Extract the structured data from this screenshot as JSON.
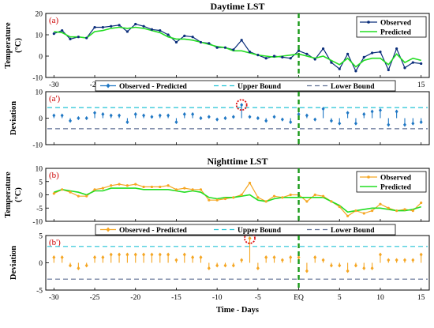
{
  "chart_data": [
    {
      "type": "line",
      "panel_label": "(a)",
      "title": "Daytime LST",
      "ylabel": [
        "Temperature",
        "(°C)"
      ],
      "ylim": [
        -10,
        20
      ],
      "yticks": [
        -10,
        0,
        10,
        20
      ],
      "xlim": [
        -31,
        16
      ],
      "xticks": [
        -30,
        -25,
        -20,
        -15,
        -10,
        -5,
        0,
        5,
        10,
        15
      ],
      "xtick_labels": [
        "-30",
        "-25",
        "-20",
        "-15",
        "-10",
        "-5",
        "EQ",
        "5",
        "10",
        "15"
      ],
      "event_day": 0,
      "legend": {
        "position": "top-right",
        "entries": [
          "Observed",
          "Predicted"
        ]
      },
      "x": [
        -30,
        -29,
        -28,
        -27,
        -26,
        -25,
        -24,
        -23,
        -22,
        -21,
        -20,
        -19,
        -18,
        -17,
        -16,
        -15,
        -14,
        -13,
        -12,
        -11,
        -10,
        -9,
        -8,
        -7,
        -6,
        -5,
        -4,
        -3,
        -2,
        -1,
        0,
        1,
        2,
        3,
        4,
        5,
        6,
        7,
        8,
        9,
        10,
        11,
        12,
        13,
        14,
        15
      ],
      "series": [
        {
          "name": "Observed",
          "color": "#0a2d7a",
          "values": [
            10.5,
            12,
            8,
            9,
            8.5,
            13.5,
            13.5,
            14,
            14.5,
            11.5,
            15,
            14,
            12.5,
            12,
            10,
            6.5,
            9.5,
            9,
            6.5,
            6,
            4,
            4,
            3,
            7.5,
            2,
            0.5,
            -1,
            0,
            -0.5,
            -1,
            2.5,
            1,
            -1.5,
            3.5,
            -3,
            -6,
            1,
            -7,
            -0.5,
            1.5,
            2,
            -6.5,
            3.5,
            -5.5,
            -3,
            -3.5
          ]
        },
        {
          "name": "Predicted",
          "color": "#22dd22",
          "values": [
            11.5,
            11,
            9,
            9,
            8.5,
            11.5,
            12,
            13,
            13.5,
            13,
            13.5,
            13,
            12,
            11,
            9,
            8,
            8,
            7.5,
            6.5,
            5.5,
            4.5,
            4,
            2.5,
            2.5,
            1.5,
            0.5,
            0,
            -0.5,
            0,
            0.5,
            1,
            0,
            -1,
            0,
            -2,
            -4,
            -1,
            -5,
            -2,
            -1,
            -1,
            -4,
            1,
            -3,
            -1,
            -2
          ]
        }
      ]
    },
    {
      "type": "stem",
      "panel_label": "(a')",
      "ylabel": "Deviation",
      "ylim": [
        -10,
        10
      ],
      "yticks": [
        -10,
        0,
        10
      ],
      "xlim": [
        -31,
        16
      ],
      "event_day": 0,
      "upper_bound": 4,
      "lower_bound": -4,
      "highlight_day": -7,
      "legend": {
        "position": "top",
        "entries": [
          "Observed - Predicted",
          "Upper Bound",
          "Lower Bound"
        ]
      },
      "x": [
        -30,
        -29,
        -28,
        -27,
        -26,
        -25,
        -24,
        -23,
        -22,
        -21,
        -20,
        -19,
        -18,
        -17,
        -16,
        -15,
        -14,
        -13,
        -12,
        -11,
        -10,
        -9,
        -8,
        -7,
        -6,
        -5,
        -4,
        -3,
        -2,
        -1,
        0,
        1,
        2,
        3,
        4,
        5,
        6,
        7,
        8,
        9,
        10,
        11,
        12,
        13,
        14,
        15
      ],
      "series": [
        {
          "name": "Observed - Predicted",
          "color": "#1f77c4",
          "values": [
            1,
            1,
            -1,
            0,
            0,
            2,
            1.5,
            1,
            1,
            -1.5,
            1.5,
            1,
            0.5,
            1,
            1,
            -1.5,
            1.5,
            1.5,
            0,
            0.5,
            -0.5,
            0,
            0.5,
            5,
            0.5,
            0,
            -1,
            0.5,
            -0.5,
            -1.5,
            1.5,
            1,
            -0.5,
            3.5,
            -1,
            -2,
            2,
            -2,
            1.5,
            2.5,
            3,
            -2.5,
            2.5,
            -2.5,
            -2,
            -1.5
          ]
        }
      ]
    },
    {
      "type": "line",
      "panel_label": "(b)",
      "title": "Nighttime LST",
      "ylabel": [
        "Temperature",
        "(°C)"
      ],
      "ylim": [
        -10,
        10
      ],
      "yticks": [
        -10,
        -5,
        0,
        5,
        10
      ],
      "xlim": [
        -31,
        16
      ],
      "event_day": 0,
      "legend": {
        "position": "top-right",
        "entries": [
          "Observed",
          "Predicted"
        ]
      },
      "x": [
        -30,
        -29,
        -28,
        -27,
        -26,
        -25,
        -24,
        -23,
        -22,
        -21,
        -20,
        -19,
        -18,
        -17,
        -16,
        -15,
        -14,
        -13,
        -12,
        -11,
        -10,
        -9,
        -8,
        -7,
        -6,
        -5,
        -4,
        -3,
        -2,
        -1,
        0,
        1,
        2,
        3,
        4,
        5,
        6,
        7,
        8,
        9,
        10,
        11,
        12,
        13,
        14,
        15
      ],
      "series": [
        {
          "name": "Observed",
          "color": "#f5a623",
          "values": [
            0.5,
            2,
            1,
            -0.5,
            -0.5,
            2,
            2.5,
            3.5,
            4,
            3.5,
            4,
            3,
            3,
            3,
            3.5,
            2,
            2.5,
            2,
            2,
            -2,
            -2,
            -1.5,
            -1,
            0,
            4.5,
            -1,
            -2.5,
            -0.5,
            -1,
            0,
            0,
            -2.5,
            0,
            -0.5,
            -2.5,
            -4.5,
            -8,
            -6,
            -7,
            -6,
            -3.5,
            -5,
            -6,
            -5.5,
            -6,
            -3
          ]
        },
        {
          "name": "Predicted",
          "color": "#22dd22",
          "values": [
            1,
            2,
            1.5,
            1,
            0,
            1.5,
            1.5,
            2.5,
            2.5,
            2.5,
            2.5,
            2,
            2,
            2,
            2,
            1.5,
            1,
            1.5,
            1,
            -1,
            -1.5,
            -1,
            -1,
            -0.5,
            0,
            -2,
            -2.5,
            -1.5,
            -1,
            -1,
            -1,
            -1,
            -1,
            -1,
            -2.5,
            -4,
            -6.5,
            -6,
            -5.5,
            -5,
            -5,
            -5.5,
            -6,
            -6,
            -5.5,
            -4.5
          ]
        }
      ]
    },
    {
      "type": "stem",
      "panel_label": "(b')",
      "ylabel": "Deviation",
      "ylim": [
        -5,
        5
      ],
      "yticks": [
        -5,
        0,
        5
      ],
      "xlim": [
        -31,
        16
      ],
      "xticks": [
        -30,
        -25,
        -20,
        -15,
        -10,
        -5,
        0,
        5,
        10,
        15
      ],
      "xtick_labels": [
        "-30",
        "-25",
        "-20",
        "-15",
        "-10",
        "-5",
        "EQ",
        "5",
        "10",
        "15"
      ],
      "xlabel": "Time - Days",
      "event_day": 0,
      "upper_bound": 3,
      "lower_bound": -3,
      "highlight_day": -6,
      "legend": {
        "position": "top",
        "entries": [
          "Observed - Predicted",
          "Upper Bound",
          "Lower Bound"
        ]
      },
      "x": [
        -30,
        -29,
        -28,
        -27,
        -26,
        -25,
        -24,
        -23,
        -22,
        -21,
        -20,
        -19,
        -18,
        -17,
        -16,
        -15,
        -14,
        -13,
        -12,
        -11,
        -10,
        -9,
        -8,
        -7,
        -6,
        -5,
        -4,
        -3,
        -2,
        -1,
        0,
        1,
        2,
        3,
        4,
        5,
        6,
        7,
        8,
        9,
        10,
        11,
        12,
        13,
        14,
        15
      ],
      "series": [
        {
          "name": "Observed - Predicted",
          "color": "#f5a623",
          "values": [
            1,
            1,
            -0.5,
            -1,
            -0.5,
            1,
            1,
            1.5,
            1.5,
            1.5,
            1.5,
            1.5,
            1.5,
            1.5,
            1.5,
            0.5,
            1.5,
            1,
            1,
            -1,
            -0.5,
            -0.5,
            -0.5,
            0.5,
            4.5,
            -1,
            1,
            1,
            0.5,
            1,
            1,
            -1.5,
            1,
            0.5,
            -0.5,
            -0.5,
            -1.5,
            -0.5,
            -1,
            -1,
            1.5,
            0.5,
            0.5,
            0.5,
            0.5,
            1.5
          ]
        }
      ]
    }
  ]
}
